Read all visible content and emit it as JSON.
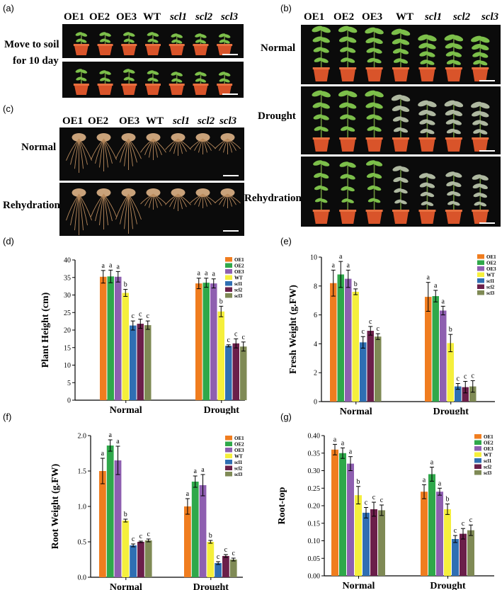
{
  "figure": {
    "panels": {
      "a": {
        "label": "(a)",
        "genotypes": [
          "OE1",
          "OE2",
          "OE3",
          "WT",
          "scl1",
          "scl2",
          "scl3"
        ],
        "row_label_1": "Move to soil",
        "row_label_2": "for 10 day"
      },
      "b": {
        "label": "(b)",
        "genotypes": [
          "OE1",
          "OE2",
          "OE3",
          "WT",
          "scl1",
          "scl2",
          "scl3"
        ],
        "rows": [
          "Normal",
          "Drought",
          "Rehydration"
        ]
      },
      "c": {
        "label": "(c)",
        "genotypes": [
          "OE1",
          "OE2",
          "OE3",
          "WT",
          "scl1",
          "scl2",
          "scl3"
        ],
        "rows": [
          "Normal",
          "Rehydration"
        ]
      },
      "d": {
        "label": "(d)"
      },
      "e": {
        "label": "(e)"
      },
      "f": {
        "label": "(f)"
      },
      "g": {
        "label": "(g)"
      }
    },
    "colors": {
      "OE1": "#f07d1f",
      "OE2": "#2fa84a",
      "OE3": "#8e5fb0",
      "WT": "#f5ef3c",
      "scl1": "#2f6fb3",
      "scl2": "#6b1f4a",
      "scl3": "#7f8a55"
    }
  },
  "chart_data": [
    {
      "id": "d",
      "type": "bar",
      "ylabel": "Plant Height (cm)",
      "categories": [
        "Normal",
        "Drought"
      ],
      "ylim": [
        0,
        40
      ],
      "ticks": [
        0,
        5,
        10,
        15,
        20,
        25,
        30,
        35,
        40
      ],
      "series": [
        {
          "name": "OE1",
          "values": [
            35.2,
            33.3
          ],
          "err": [
            1.8,
            1.5
          ],
          "sig": [
            "a",
            "a"
          ]
        },
        {
          "name": "OE2",
          "values": [
            35.3,
            33.5
          ],
          "err": [
            1.8,
            1.3
          ],
          "sig": [
            "a",
            "a"
          ]
        },
        {
          "name": "OE3",
          "values": [
            35.2,
            33.3
          ],
          "err": [
            1.5,
            1.3
          ],
          "sig": [
            "a",
            "a"
          ]
        },
        {
          "name": "WT",
          "values": [
            30.6,
            25.3
          ],
          "err": [
            1.0,
            1.5
          ],
          "sig": [
            "b",
            "b"
          ]
        },
        {
          "name": "scl1",
          "values": [
            21.3,
            15.5
          ],
          "err": [
            1.3,
            0.3
          ],
          "sig": [
            "c",
            "c"
          ]
        },
        {
          "name": "scl2",
          "values": [
            21.8,
            16.2
          ],
          "err": [
            1.3,
            1.3
          ],
          "sig": [
            "c",
            "c"
          ]
        },
        {
          "name": "scl3",
          "values": [
            21.4,
            15.3
          ],
          "err": [
            1.2,
            1.3
          ],
          "sig": [
            "c",
            "c"
          ]
        }
      ]
    },
    {
      "id": "e",
      "type": "bar",
      "ylabel": "Fresh Weight (g.FW)",
      "categories": [
        "Normal",
        "Drought"
      ],
      "ylim": [
        0,
        10
      ],
      "ticks": [
        0,
        2,
        4,
        6,
        8,
        10
      ],
      "series": [
        {
          "name": "OE1",
          "values": [
            8.2,
            7.25
          ],
          "err": [
            0.9,
            1.0
          ],
          "sig": [
            "a",
            "a"
          ]
        },
        {
          "name": "OE2",
          "values": [
            8.8,
            7.3
          ],
          "err": [
            0.9,
            0.4
          ],
          "sig": [
            "a",
            "a"
          ]
        },
        {
          "name": "OE3",
          "values": [
            8.5,
            6.3
          ],
          "err": [
            0.6,
            0.3
          ],
          "sig": [
            "a",
            "a"
          ]
        },
        {
          "name": "WT",
          "values": [
            7.6,
            4.05
          ],
          "err": [
            0.2,
            0.6
          ],
          "sig": [
            "b",
            "b"
          ]
        },
        {
          "name": "scl1",
          "values": [
            4.1,
            1.05
          ],
          "err": [
            0.4,
            0.2
          ],
          "sig": [
            "c",
            "c"
          ]
        },
        {
          "name": "scl2",
          "values": [
            4.9,
            1.0
          ],
          "err": [
            0.3,
            0.4
          ],
          "sig": [
            "c",
            "c"
          ]
        },
        {
          "name": "scl3",
          "values": [
            4.5,
            1.05
          ],
          "err": [
            0.2,
            0.4
          ],
          "sig": [
            "c",
            "c"
          ]
        }
      ]
    },
    {
      "id": "f",
      "type": "bar",
      "ylabel": "Root Weight (g.FW)",
      "categories": [
        "Normal",
        "Drought"
      ],
      "ylim": [
        0,
        2.0
      ],
      "ticks": [
        "0.0",
        "0.5",
        "1.0",
        "1.5",
        "2.0"
      ],
      "series": [
        {
          "name": "OE1",
          "values": [
            1.5,
            1.0
          ],
          "err": [
            0.18,
            0.11
          ],
          "sig": [
            "a",
            "a"
          ]
        },
        {
          "name": "OE2",
          "values": [
            1.86,
            1.35
          ],
          "err": [
            0.08,
            0.08
          ],
          "sig": [
            "a",
            "a"
          ]
        },
        {
          "name": "OE3",
          "values": [
            1.65,
            1.3
          ],
          "err": [
            0.2,
            0.15
          ],
          "sig": [
            "a",
            "a"
          ]
        },
        {
          "name": "WT",
          "values": [
            0.8,
            0.5
          ],
          "err": [
            0.02,
            0.02
          ],
          "sig": [
            "b",
            "b"
          ]
        },
        {
          "name": "scl1",
          "values": [
            0.45,
            0.2
          ],
          "err": [
            0.02,
            0.02
          ],
          "sig": [
            "c",
            "c"
          ]
        },
        {
          "name": "scl2",
          "values": [
            0.5,
            0.3
          ],
          "err": [
            0.01,
            0.02
          ],
          "sig": [
            "c",
            "c"
          ]
        },
        {
          "name": "scl3",
          "values": [
            0.52,
            0.25
          ],
          "err": [
            0.02,
            0.02
          ],
          "sig": [
            "c",
            "c"
          ]
        }
      ]
    },
    {
      "id": "g",
      "type": "bar",
      "ylabel": "Root-top",
      "categories": [
        "Normal",
        "Drought"
      ],
      "ylim": [
        0,
        0.4
      ],
      "ticks": [
        "0.00",
        "0.05",
        "0.10",
        "0.15",
        "0.20",
        "0.25",
        "0.30",
        "0.35",
        "0.40"
      ],
      "series": [
        {
          "name": "OE1",
          "values": [
            0.36,
            0.24
          ],
          "err": [
            0.015,
            0.02
          ],
          "sig": [
            "a",
            "a"
          ]
        },
        {
          "name": "OE2",
          "values": [
            0.35,
            0.29
          ],
          "err": [
            0.015,
            0.02
          ],
          "sig": [
            "a",
            "a"
          ]
        },
        {
          "name": "OE3",
          "values": [
            0.32,
            0.24
          ],
          "err": [
            0.02,
            0.01
          ],
          "sig": [
            "a",
            "a"
          ]
        },
        {
          "name": "WT",
          "values": [
            0.23,
            0.19
          ],
          "err": [
            0.025,
            0.015
          ],
          "sig": [
            "b",
            "b"
          ]
        },
        {
          "name": "scl1",
          "values": [
            0.18,
            0.105
          ],
          "err": [
            0.015,
            0.01
          ],
          "sig": [
            "c",
            "c"
          ]
        },
        {
          "name": "scl2",
          "values": [
            0.19,
            0.12
          ],
          "err": [
            0.02,
            0.015
          ],
          "sig": [
            "c",
            "c"
          ]
        },
        {
          "name": "scl3",
          "values": [
            0.187,
            0.13
          ],
          "err": [
            0.015,
            0.015
          ],
          "sig": [
            "c",
            "c"
          ]
        }
      ]
    }
  ]
}
